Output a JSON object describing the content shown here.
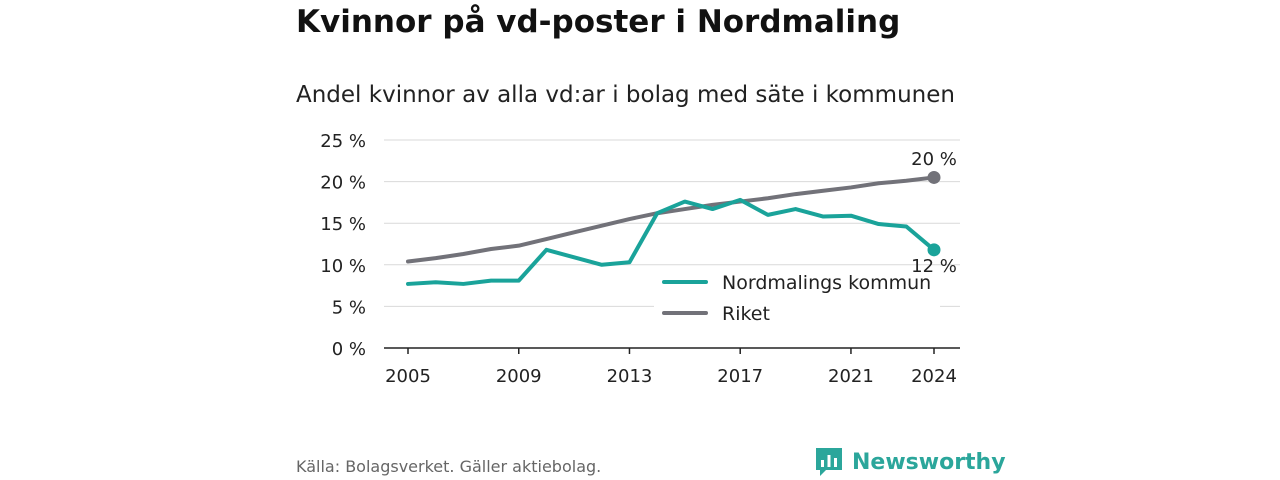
{
  "header": {
    "title": "Kvinnor på vd-poster i Nordmaling",
    "subtitle": "Andel kvinnor av alla vd:ar i bolag med säte i kommunen"
  },
  "footer": {
    "source": "Källa: Bolagsverket. Gäller aktiebolag.",
    "brand": "Newsworthy"
  },
  "colors": {
    "nordmaling": "#1aa39a",
    "riket": "#727279",
    "grid": "#d9d9d9",
    "brand": "#2ba69b"
  },
  "chart_data": {
    "type": "line",
    "x": [
      2005,
      2006,
      2007,
      2008,
      2009,
      2010,
      2011,
      2012,
      2013,
      2014,
      2015,
      2016,
      2017,
      2018,
      2019,
      2020,
      2021,
      2022,
      2023,
      2024
    ],
    "series": [
      {
        "name": "Nordmalings kommun",
        "values": [
          7.7,
          7.9,
          7.7,
          8.1,
          8.1,
          11.8,
          10.9,
          10.0,
          10.3,
          16.2,
          17.6,
          16.7,
          17.8,
          16.0,
          16.7,
          15.8,
          15.9,
          14.9,
          14.6,
          11.8
        ],
        "end_label": "12 %"
      },
      {
        "name": "Riket",
        "values": [
          10.4,
          10.8,
          11.3,
          11.9,
          12.3,
          13.1,
          13.9,
          14.7,
          15.5,
          16.2,
          16.7,
          17.2,
          17.6,
          18.0,
          18.5,
          18.9,
          19.3,
          19.8,
          20.1,
          20.5
        ],
        "end_label": "20 %"
      }
    ],
    "yticks": [
      "0 %",
      "5 %",
      "10 %",
      "15 %",
      "20 %",
      "25 %"
    ],
    "ytick_values": [
      0,
      5,
      10,
      15,
      20,
      25
    ],
    "xticks": [
      "2005",
      "2009",
      "2013",
      "2017",
      "2021",
      "2024"
    ],
    "xtick_values": [
      2005,
      2009,
      2013,
      2017,
      2021,
      2024
    ],
    "xlim": [
      2005,
      2024
    ],
    "ylim": [
      0,
      25
    ],
    "grid": true,
    "legend_position": "bottom-right",
    "xlabel": "",
    "ylabel": ""
  }
}
